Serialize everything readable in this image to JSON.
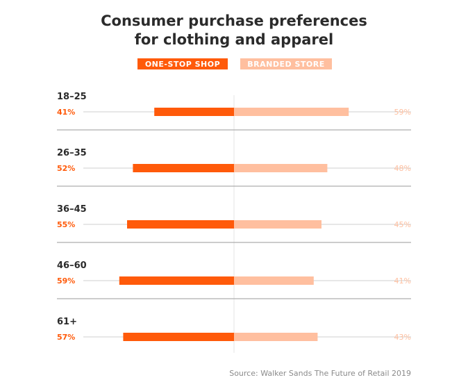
{
  "chart_data": {
    "type": "bar",
    "title_lines": [
      "Consumer purchase preferences",
      "for clothing and apparel"
    ],
    "legend": {
      "placement": "top-center",
      "items": [
        "ONE-STOP SHOP",
        "BRANDED STORE"
      ]
    },
    "categories": [
      "18–25",
      "26–35",
      "36–45",
      "46–60",
      "61+"
    ],
    "series": [
      {
        "name": "ONE-STOP SHOP",
        "values": [
          41,
          52,
          55,
          59,
          57
        ],
        "labels": [
          "41%",
          "52%",
          "55%",
          "59%",
          "57%"
        ]
      },
      {
        "name": "BRANDED STORE",
        "values": [
          59,
          48,
          45,
          41,
          43
        ],
        "labels": [
          "59%",
          "48%",
          "45%",
          "41%",
          "43%"
        ]
      }
    ],
    "xlim": [
      0,
      60
    ],
    "source": "Source: Walker Sands The Future of Retail 2019"
  },
  "colors": {
    "one_stop": "#ff5a0a",
    "branded": "#ffbf9f",
    "text_dark": "#2b2b2b",
    "grid": "#cfcfcf",
    "divider": "#e6e6e6",
    "source": "#8a8a8a"
  }
}
